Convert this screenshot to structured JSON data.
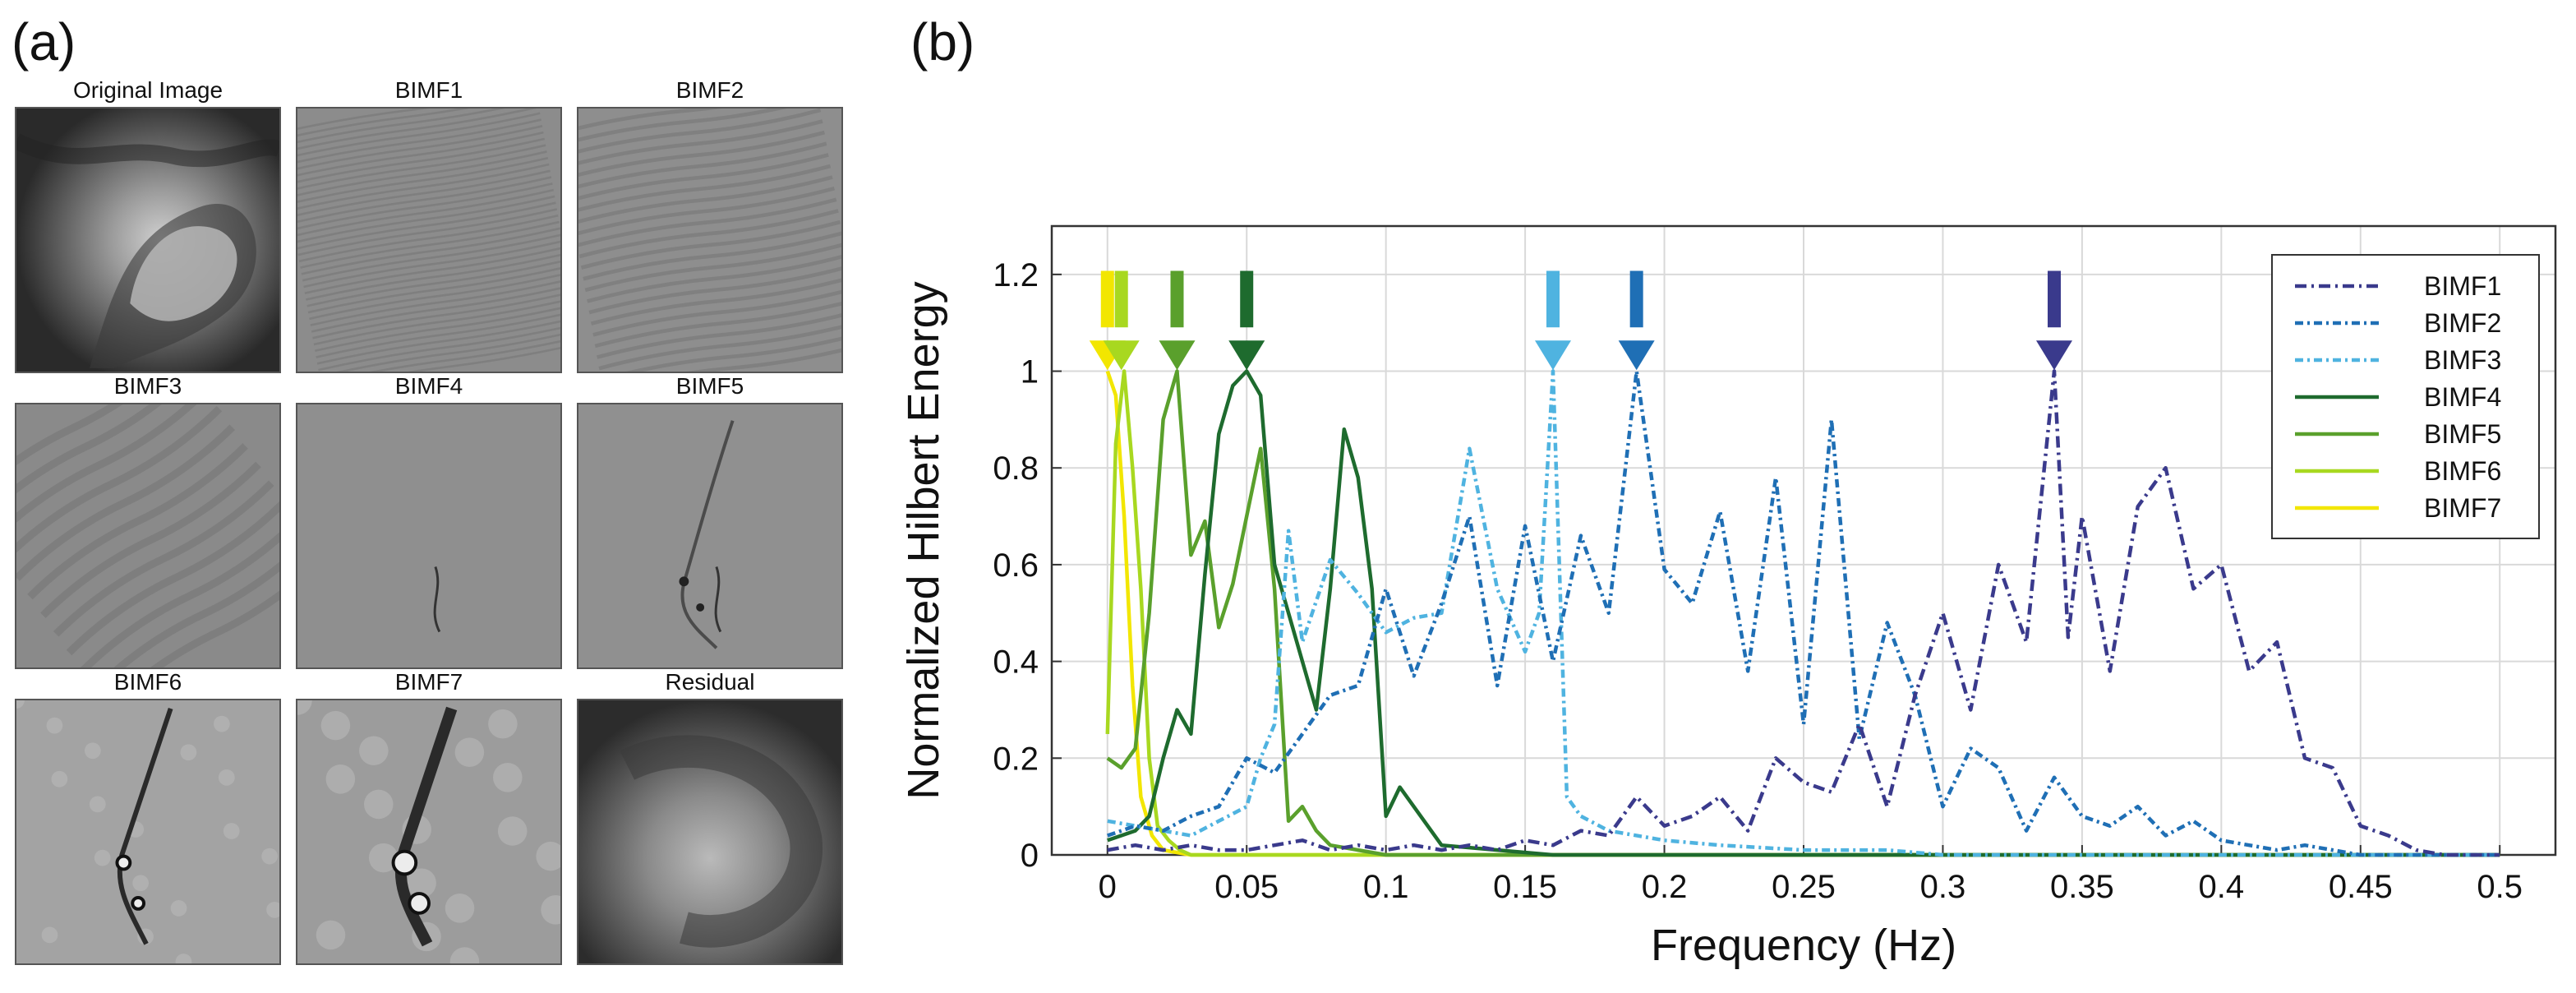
{
  "panels": {
    "a_label": "(a)",
    "b_label": "(b)",
    "images": [
      {
        "title": "Original Image"
      },
      {
        "title": "BIMF1"
      },
      {
        "title": "BIMF2"
      },
      {
        "title": "BIMF3"
      },
      {
        "title": "BIMF4"
      },
      {
        "title": "BIMF5"
      },
      {
        "title": "BIMF6"
      },
      {
        "title": "BIMF7"
      },
      {
        "title": "Residual"
      }
    ]
  },
  "chart_data": {
    "type": "line",
    "title": "",
    "xlabel": "Frequency (Hz)",
    "ylabel": "Normalized Hilbert Energy",
    "xlim": [
      -0.02,
      0.52
    ],
    "ylim": [
      0,
      1.3
    ],
    "xticks": [
      0,
      0.05,
      0.1,
      0.15,
      0.2,
      0.25,
      0.3,
      0.35,
      0.4,
      0.45,
      0.5
    ],
    "xtick_labels": [
      "0",
      "0.05",
      "0.1",
      "0.15",
      "0.2",
      "0.25",
      "0.3",
      "0.35",
      "0.4",
      "0.45",
      "0.5"
    ],
    "yticks": [
      0,
      0.2,
      0.4,
      0.6,
      0.8,
      1,
      1.2
    ],
    "ytick_labels": [
      "0",
      "0.2",
      "0.4",
      "0.6",
      "0.8",
      "1",
      "1.2"
    ],
    "grid": true,
    "legend_position": "top-right",
    "series": [
      {
        "name": "BIMF1",
        "color": "#3a3a8c",
        "dash": "14,6,3,6",
        "x": [
          0,
          0.01,
          0.02,
          0.03,
          0.04,
          0.05,
          0.06,
          0.07,
          0.08,
          0.09,
          0.1,
          0.11,
          0.12,
          0.13,
          0.14,
          0.15,
          0.16,
          0.17,
          0.18,
          0.19,
          0.2,
          0.21,
          0.22,
          0.23,
          0.24,
          0.25,
          0.26,
          0.27,
          0.28,
          0.29,
          0.3,
          0.31,
          0.32,
          0.33,
          0.34,
          0.345,
          0.35,
          0.36,
          0.37,
          0.38,
          0.39,
          0.4,
          0.41,
          0.42,
          0.43,
          0.44,
          0.45,
          0.46,
          0.47,
          0.48,
          0.5
        ],
        "y": [
          0.01,
          0.02,
          0.01,
          0.02,
          0.01,
          0.01,
          0.02,
          0.03,
          0.01,
          0.02,
          0.01,
          0.02,
          0.01,
          0.02,
          0.01,
          0.03,
          0.02,
          0.05,
          0.04,
          0.12,
          0.06,
          0.08,
          0.12,
          0.05,
          0.2,
          0.15,
          0.13,
          0.27,
          0.1,
          0.33,
          0.5,
          0.3,
          0.6,
          0.44,
          1.0,
          0.45,
          0.7,
          0.38,
          0.72,
          0.8,
          0.55,
          0.6,
          0.38,
          0.44,
          0.2,
          0.18,
          0.06,
          0.04,
          0.01,
          0.0,
          0.0
        ]
      },
      {
        "name": "BIMF2",
        "color": "#1f6fb5",
        "dash": "10,5,3,5",
        "x": [
          0,
          0.01,
          0.02,
          0.03,
          0.04,
          0.05,
          0.06,
          0.07,
          0.08,
          0.09,
          0.1,
          0.11,
          0.12,
          0.13,
          0.14,
          0.15,
          0.16,
          0.17,
          0.18,
          0.19,
          0.2,
          0.21,
          0.22,
          0.23,
          0.24,
          0.25,
          0.26,
          0.27,
          0.28,
          0.29,
          0.3,
          0.31,
          0.32,
          0.33,
          0.34,
          0.35,
          0.36,
          0.37,
          0.38,
          0.39,
          0.4,
          0.41,
          0.42,
          0.43,
          0.44,
          0.45,
          0.5
        ],
        "y": [
          0.04,
          0.06,
          0.05,
          0.08,
          0.1,
          0.2,
          0.17,
          0.25,
          0.33,
          0.35,
          0.55,
          0.37,
          0.52,
          0.7,
          0.35,
          0.68,
          0.4,
          0.66,
          0.5,
          1.0,
          0.59,
          0.52,
          0.71,
          0.38,
          0.78,
          0.27,
          0.9,
          0.24,
          0.48,
          0.33,
          0.1,
          0.22,
          0.18,
          0.05,
          0.16,
          0.08,
          0.06,
          0.1,
          0.04,
          0.07,
          0.03,
          0.02,
          0.01,
          0.02,
          0.01,
          0.0,
          0.0
        ]
      },
      {
        "name": "BIMF3",
        "color": "#4fb3e0",
        "dash": "10,5,3,5",
        "x": [
          0,
          0.01,
          0.02,
          0.03,
          0.04,
          0.05,
          0.055,
          0.06,
          0.065,
          0.07,
          0.08,
          0.09,
          0.1,
          0.11,
          0.12,
          0.13,
          0.14,
          0.15,
          0.155,
          0.16,
          0.165,
          0.17,
          0.18,
          0.2,
          0.22,
          0.25,
          0.28,
          0.3,
          0.35,
          0.4,
          0.5
        ],
        "y": [
          0.07,
          0.06,
          0.05,
          0.04,
          0.07,
          0.1,
          0.2,
          0.27,
          0.67,
          0.44,
          0.61,
          0.54,
          0.46,
          0.49,
          0.5,
          0.84,
          0.55,
          0.42,
          0.5,
          1.0,
          0.12,
          0.08,
          0.05,
          0.03,
          0.02,
          0.01,
          0.01,
          0.0,
          0.0,
          0.0,
          0.0
        ]
      },
      {
        "name": "BIMF4",
        "color": "#1e6b2e",
        "dash": "",
        "x": [
          0,
          0.01,
          0.015,
          0.02,
          0.025,
          0.03,
          0.035,
          0.04,
          0.045,
          0.05,
          0.055,
          0.06,
          0.065,
          0.07,
          0.075,
          0.08,
          0.085,
          0.09,
          0.095,
          0.1,
          0.105,
          0.11,
          0.12,
          0.14,
          0.16,
          0.5
        ],
        "y": [
          0.03,
          0.05,
          0.08,
          0.2,
          0.3,
          0.25,
          0.58,
          0.87,
          0.97,
          1.0,
          0.95,
          0.6,
          0.5,
          0.4,
          0.3,
          0.55,
          0.88,
          0.78,
          0.55,
          0.08,
          0.14,
          0.1,
          0.02,
          0.01,
          0.0,
          0.0
        ]
      },
      {
        "name": "BIMF5",
        "color": "#5aa02c",
        "dash": "",
        "x": [
          0,
          0.005,
          0.01,
          0.015,
          0.02,
          0.025,
          0.03,
          0.035,
          0.04,
          0.045,
          0.05,
          0.055,
          0.06,
          0.065,
          0.07,
          0.075,
          0.08,
          0.09,
          0.1,
          0.5
        ],
        "y": [
          0.2,
          0.18,
          0.22,
          0.5,
          0.9,
          1.0,
          0.62,
          0.69,
          0.47,
          0.56,
          0.7,
          0.84,
          0.55,
          0.07,
          0.1,
          0.05,
          0.02,
          0.01,
          0.0,
          0.0
        ]
      },
      {
        "name": "BIMF6",
        "color": "#a8d820",
        "dash": "",
        "x": [
          0,
          0.003,
          0.006,
          0.009,
          0.012,
          0.015,
          0.018,
          0.022,
          0.026,
          0.03,
          0.04,
          0.5
        ],
        "y": [
          0.25,
          0.85,
          1.0,
          0.8,
          0.55,
          0.2,
          0.06,
          0.03,
          0.01,
          0.0,
          0.0,
          0.0
        ]
      },
      {
        "name": "BIMF7",
        "color": "#f2e600",
        "dash": "",
        "x": [
          0,
          0.003,
          0.006,
          0.009,
          0.012,
          0.016,
          0.02,
          0.03,
          0.5
        ],
        "y": [
          1.0,
          0.95,
          0.7,
          0.35,
          0.12,
          0.04,
          0.01,
          0.0,
          0.0
        ]
      }
    ],
    "arrows": [
      {
        "x": 0.0,
        "color": "#f2e600"
      },
      {
        "x": 0.005,
        "color": "#a8d820"
      },
      {
        "x": 0.025,
        "color": "#5aa02c"
      },
      {
        "x": 0.05,
        "color": "#1e6b2e"
      },
      {
        "x": 0.16,
        "color": "#4fb3e0"
      },
      {
        "x": 0.19,
        "color": "#1f6fb5"
      },
      {
        "x": 0.34,
        "color": "#3a3a8c"
      }
    ]
  }
}
